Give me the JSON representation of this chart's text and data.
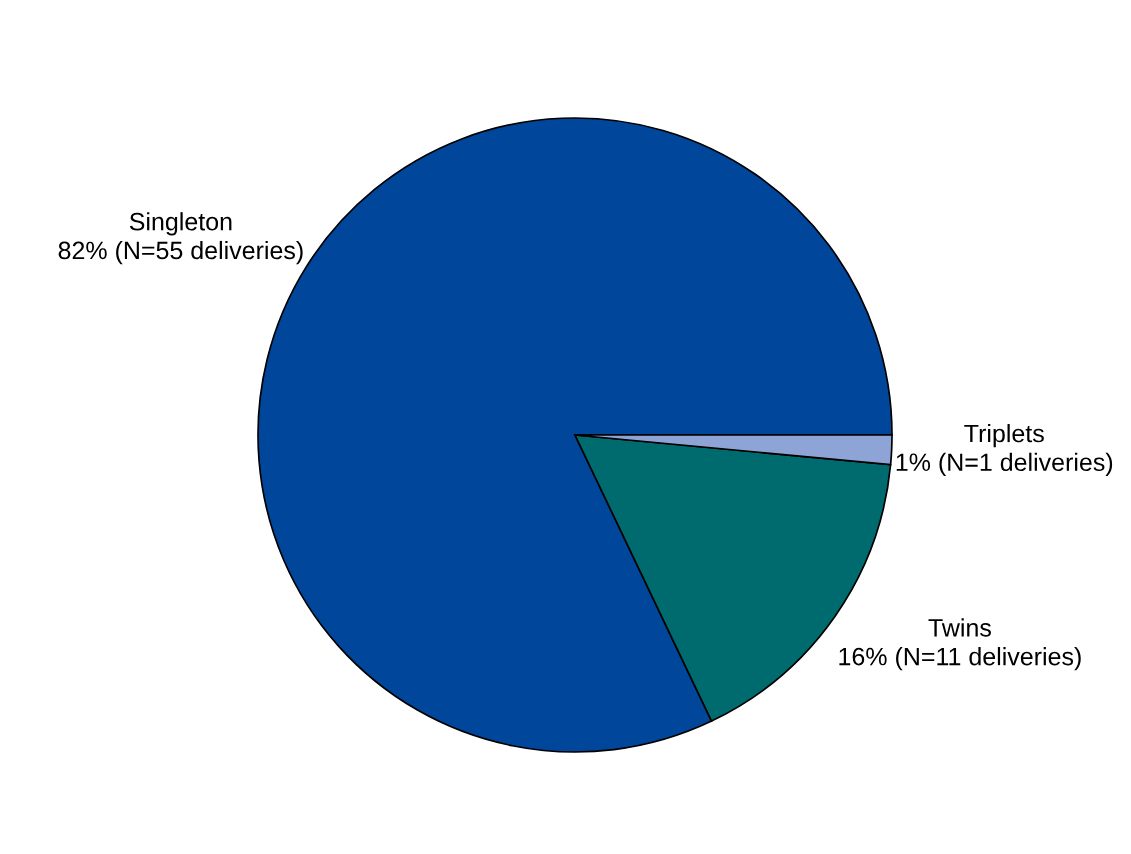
{
  "chart_data": {
    "type": "pie",
    "categories": [
      "Singleton",
      "Twins",
      "Triplets"
    ],
    "values": [
      55,
      11,
      1
    ],
    "colors": [
      "#00469a",
      "#006b6f",
      "#8ea4d6"
    ],
    "value_labels": [
      "82% (N=55 deliveries)",
      "16% (N=11 deliveries)",
      "1% (N=1 deliveries)"
    ]
  }
}
